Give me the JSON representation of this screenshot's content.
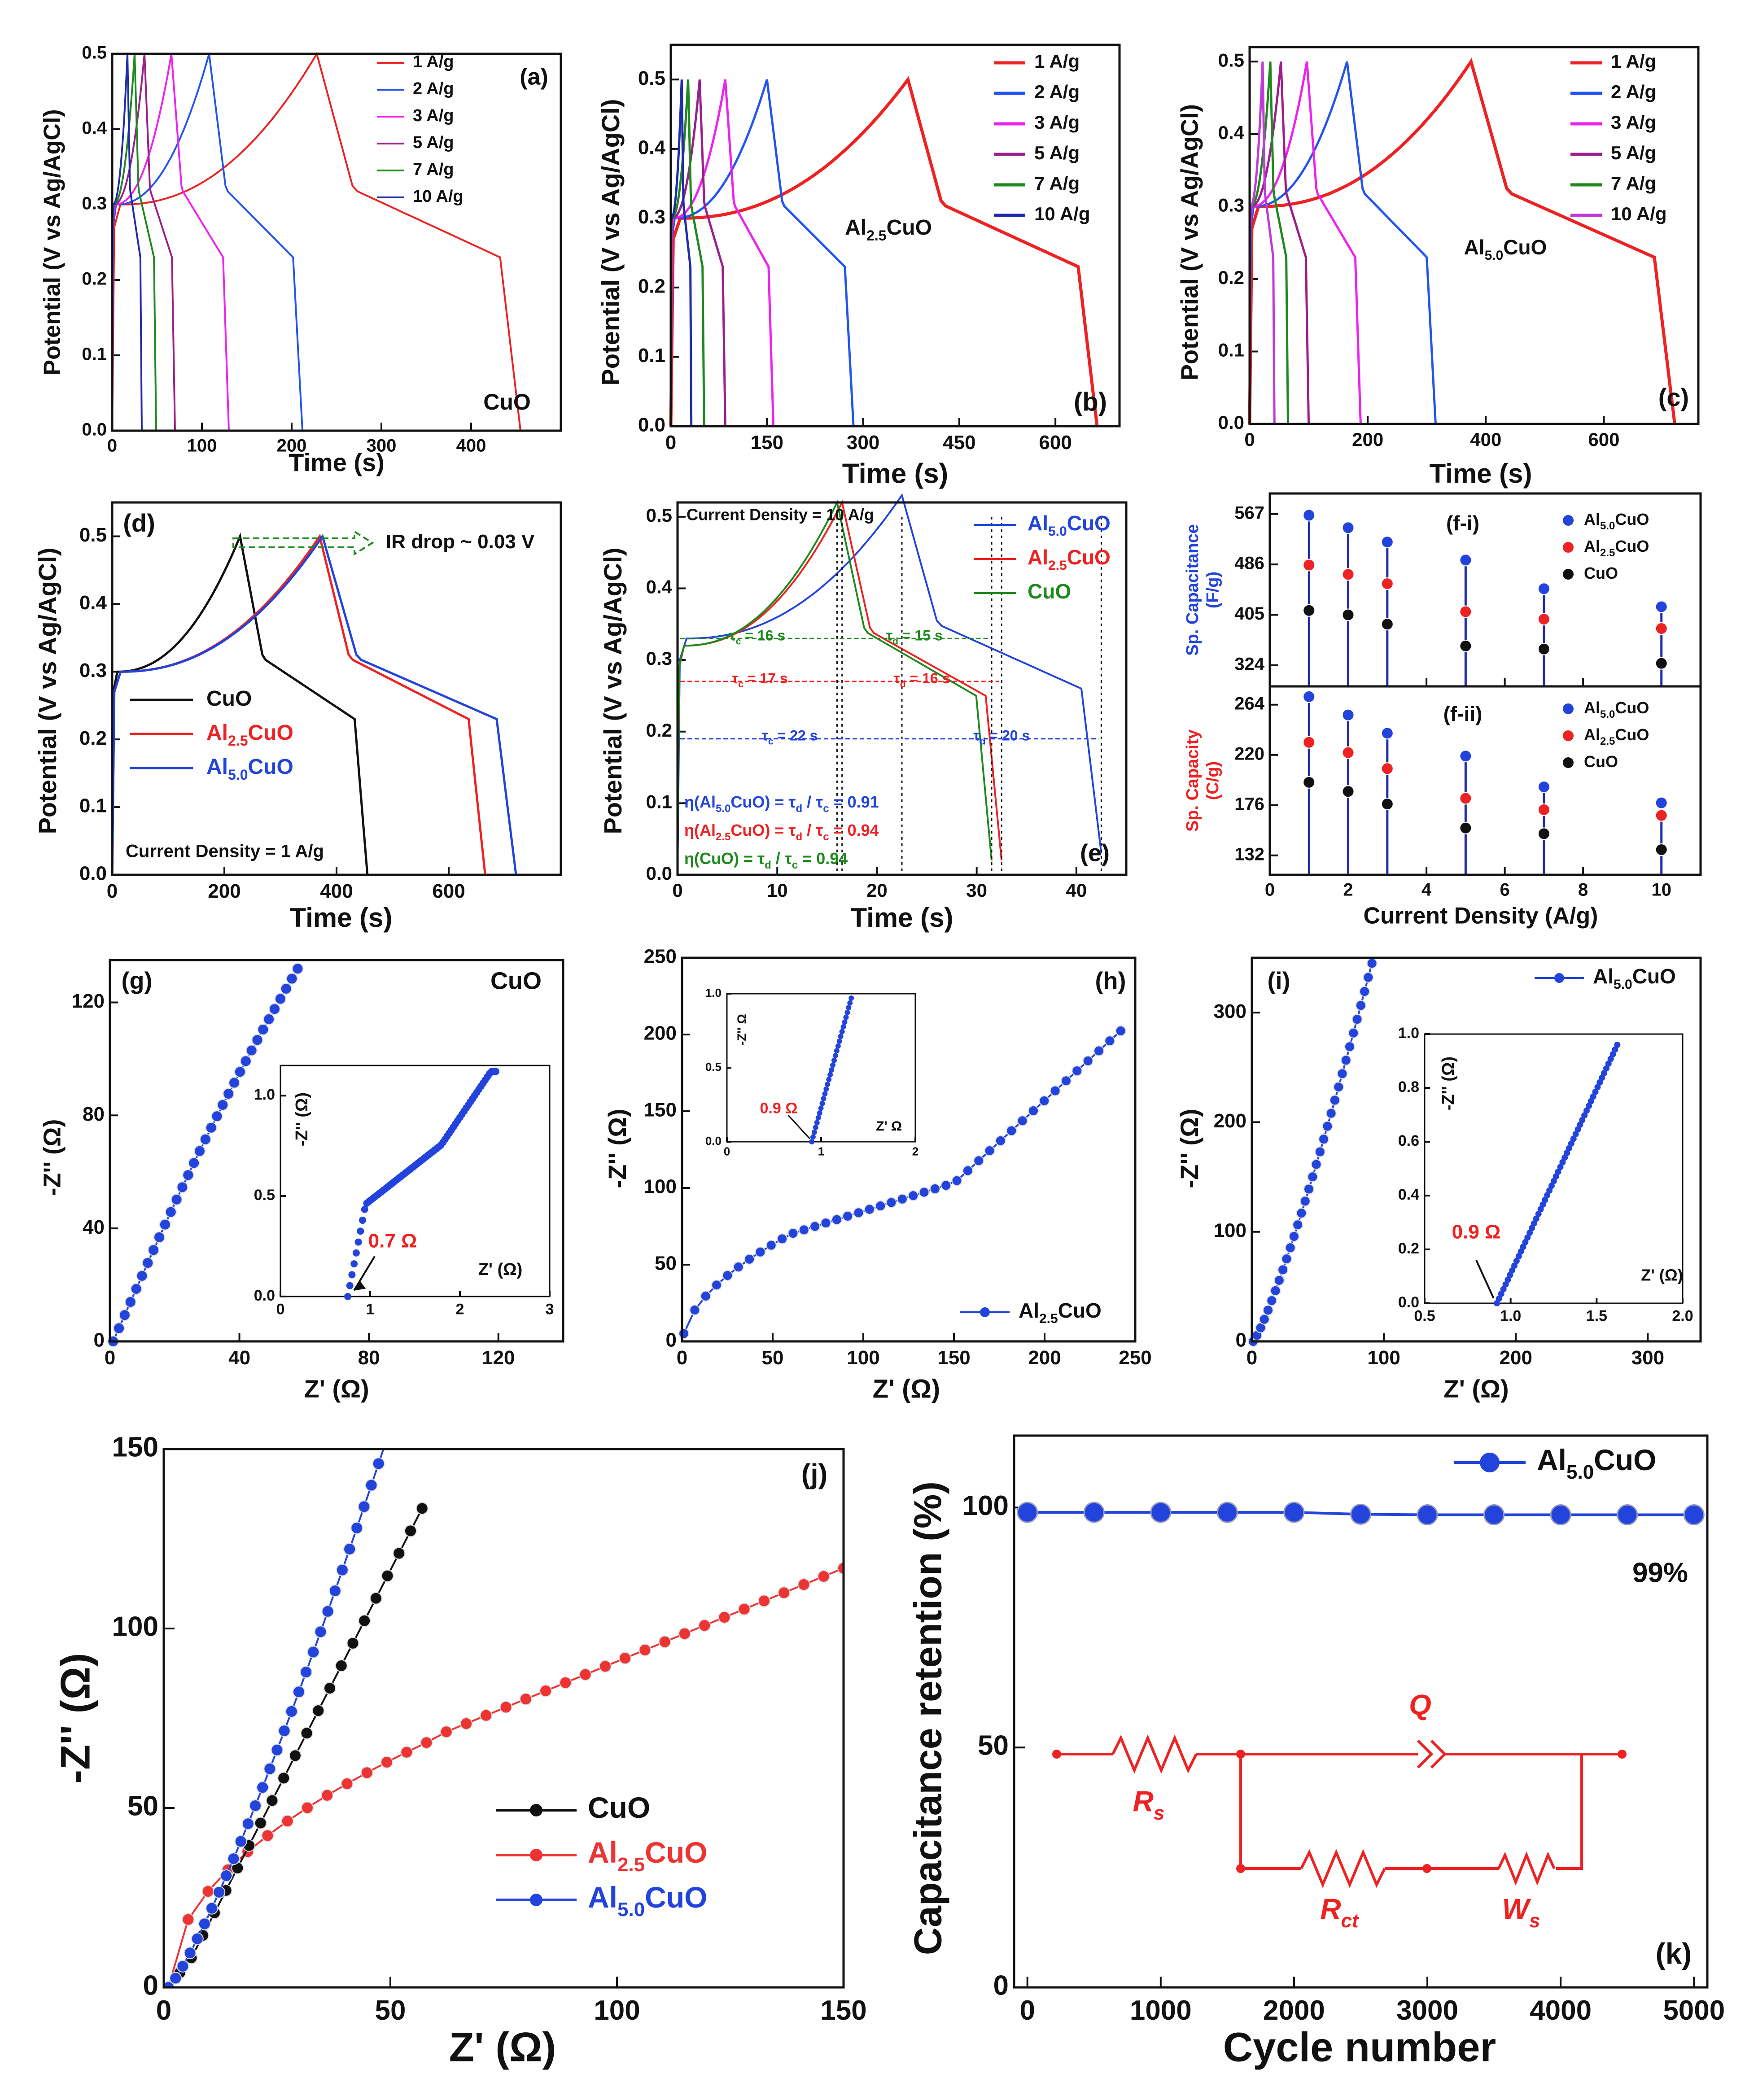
{
  "chart_data": [
    {
      "id": "a",
      "type": "line",
      "panel_label": "(a)",
      "annotation": "CuO",
      "xlabel": "Time (s)",
      "ylabel": "Potential (V vs Ag/AgCl)",
      "xlim": [
        0,
        500
      ],
      "ylim": [
        0,
        0.5
      ],
      "xticks": [
        0,
        100,
        200,
        300,
        400
      ],
      "yticks": [
        0,
        0.1,
        0.2,
        0.3,
        0.4,
        0.5
      ],
      "series": [
        {
          "name": "1 A/g",
          "color": "#ee2222",
          "charge_end": 228,
          "discharge_end": 455
        },
        {
          "name": "2 A/g",
          "color": "#2255ee",
          "charge_end": 108,
          "discharge_end": 212
        },
        {
          "name": "3 A/g",
          "color": "#ee22ee",
          "charge_end": 66,
          "discharge_end": 130
        },
        {
          "name": "5 A/g",
          "color": "#9b1f8a",
          "charge_end": 36,
          "discharge_end": 70
        },
        {
          "name": "7 A/g",
          "color": "#1e8a1e",
          "charge_end": 25,
          "discharge_end": 49
        },
        {
          "name": "10 A/g",
          "color": "#1f2ca8",
          "charge_end": 17,
          "discharge_end": 33
        }
      ]
    },
    {
      "id": "b",
      "type": "line",
      "panel_label": "(b)",
      "annotation": "Al2.5CuO",
      "xlabel": "Time (s)",
      "ylabel": "Potential (V vs Ag/AgCl)",
      "xlim": [
        0,
        700
      ],
      "ylim": [
        0,
        0.55
      ],
      "xticks": [
        0,
        150,
        300,
        450,
        600
      ],
      "yticks": [
        0,
        0.1,
        0.2,
        0.3,
        0.4,
        0.5
      ],
      "series": [
        {
          "name": "1 A/g",
          "color": "#ee2222",
          "charge_end": 370,
          "discharge_end": 665
        },
        {
          "name": "2 A/g",
          "color": "#2255ee",
          "charge_end": 150,
          "discharge_end": 285
        },
        {
          "name": "3 A/g",
          "color": "#ee22ee",
          "charge_end": 85,
          "discharge_end": 160
        },
        {
          "name": "5 A/g",
          "color": "#9b1f8a",
          "charge_end": 45,
          "discharge_end": 85
        },
        {
          "name": "7 A/g",
          "color": "#1e8a1e",
          "charge_end": 27,
          "discharge_end": 52
        },
        {
          "name": "10 A/g",
          "color": "#1f2ca8",
          "charge_end": 17,
          "discharge_end": 32
        }
      ]
    },
    {
      "id": "c",
      "type": "line",
      "panel_label": "(c)",
      "annotation": "Al5.0CuO",
      "xlabel": "Time (s)",
      "ylabel": "Potential (V vs Ag/AgCl)",
      "xlim": [
        0,
        760
      ],
      "ylim": [
        0,
        0.52
      ],
      "xticks": [
        0,
        200,
        400,
        600
      ],
      "yticks": [
        0,
        0.1,
        0.2,
        0.3,
        0.4,
        0.5
      ],
      "series": [
        {
          "name": "1 A/g",
          "color": "#ee2222",
          "charge_end": 375,
          "discharge_end": 720
        },
        {
          "name": "2 A/g",
          "color": "#2255ee",
          "charge_end": 165,
          "discharge_end": 315
        },
        {
          "name": "3 A/g",
          "color": "#ee22ee",
          "charge_end": 97,
          "discharge_end": 188
        },
        {
          "name": "5 A/g",
          "color": "#9b1f8a",
          "charge_end": 53,
          "discharge_end": 100
        },
        {
          "name": "7 A/g",
          "color": "#1e8a1e",
          "charge_end": 35,
          "discharge_end": 65
        },
        {
          "name": "10 A/g",
          "color": "#c03ad8",
          "charge_end": 22,
          "discharge_end": 42
        }
      ]
    },
    {
      "id": "d",
      "type": "line",
      "panel_label": "(d)",
      "annotation": "IR drop ~ 0.03 V",
      "note": "Current Density = 1 A/g",
      "xlabel": "Time (s)",
      "ylabel": "Potential (V vs Ag/AgCl)",
      "xlim": [
        0,
        800
      ],
      "ylim": [
        0,
        0.55
      ],
      "xticks": [
        0,
        200,
        400,
        600
      ],
      "yticks": [
        0,
        0.1,
        0.2,
        0.3,
        0.4,
        0.5
      ],
      "series": [
        {
          "name": "CuO",
          "color": "#111111",
          "charge_end": 228,
          "discharge_end": 455
        },
        {
          "name": "Al2.5CuO",
          "color": "#ee2222",
          "charge_end": 370,
          "discharge_end": 665
        },
        {
          "name": "Al5.0CuO",
          "color": "#2244dd",
          "charge_end": 375,
          "discharge_end": 720
        }
      ]
    },
    {
      "id": "e",
      "type": "line",
      "panel_label": "(e)",
      "note": "Current Density = 10 A/g",
      "xlabel": "Time (s)",
      "ylabel": "Potential (V vs Ag/AgCl)",
      "xlim": [
        0,
        45
      ],
      "ylim": [
        0,
        0.52
      ],
      "xticks": [
        0,
        10,
        20,
        30,
        40
      ],
      "yticks": [
        0,
        0.1,
        0.2,
        0.3,
        0.4,
        0.5
      ],
      "series": [
        {
          "name": "Al5.0CuO",
          "color": "#2244dd",
          "charge_end": 22.5,
          "discharge_end": 42.5
        },
        {
          "name": "Al2.5CuO",
          "color": "#ee2222",
          "charge_end": 16.5,
          "discharge_end": 32.5
        },
        {
          "name": "CuO",
          "color": "#1e8a1e",
          "charge_end": 16,
          "discharge_end": 31.5
        }
      ],
      "tau_labels": [
        "τc = 16 s",
        "τd = 15 s",
        "τc = 17 s",
        "τd = 16 s",
        "τc = 22 s",
        "τd = 20 s"
      ],
      "eff_labels": [
        "η(Al5.0CuO) = τd / τc = 0.91",
        "η(Al2.5CuO) = τd / τc = 0.94",
        "η(CuO) = τd / τc = 0.94"
      ]
    },
    {
      "id": "f-i",
      "type": "scatter",
      "panel_label": "(f-i)",
      "ylabel": "Sp. Capacitance (F/g)",
      "ylim": [
        290,
        600
      ],
      "yticks": [
        324,
        405,
        486,
        567
      ],
      "x": [
        1,
        2,
        3,
        5,
        7,
        10
      ],
      "series": [
        {
          "name": "Al5.0CuO",
          "color": "#2244dd",
          "values": [
            565,
            545,
            522,
            493,
            447,
            418
          ]
        },
        {
          "name": "Al2.5CuO",
          "color": "#ee2222",
          "values": [
            485,
            470,
            455,
            410,
            398,
            383
          ]
        },
        {
          "name": "CuO",
          "color": "#111111",
          "values": [
            412,
            405,
            390,
            355,
            350,
            327
          ]
        }
      ]
    },
    {
      "id": "f-ii",
      "type": "scatter",
      "panel_label": "(f-ii)",
      "xlabel": "Current Density (A/g)",
      "ylabel": "Sp. Capacity (C/g)",
      "xlim": [
        0,
        11
      ],
      "ylim": [
        115,
        280
      ],
      "xticks": [
        0,
        2,
        4,
        6,
        8,
        10
      ],
      "yticks": [
        132,
        176,
        220,
        264
      ],
      "x": [
        1,
        2,
        3,
        5,
        7,
        10
      ],
      "series": [
        {
          "name": "Al5.0CuO",
          "color": "#2244dd",
          "values": [
            271,
            255,
            239,
            219,
            192,
            178
          ]
        },
        {
          "name": "Al2.5CuO",
          "color": "#ee2222",
          "values": [
            231,
            222,
            208,
            182,
            172,
            167
          ]
        },
        {
          "name": "CuO",
          "color": "#111111",
          "values": [
            196,
            188,
            177,
            156,
            151,
            137
          ]
        }
      ]
    },
    {
      "id": "g",
      "type": "scatter",
      "panel_label": "(g)",
      "annotation": "CuO",
      "xlabel": "Z' (Ω)",
      "ylabel": "-Z'' (Ω)",
      "xlim": [
        0,
        140
      ],
      "ylim": [
        0,
        135
      ],
      "xticks": [
        0,
        40,
        80,
        120
      ],
      "yticks": [
        0,
        40,
        80,
        120
      ],
      "inset": {
        "xlabel": "Z' (Ω)",
        "ylabel": "-Z'' (Ω)",
        "xlim": [
          0,
          3
        ],
        "ylim": [
          0,
          1.15
        ],
        "xticks": [
          0,
          1,
          2,
          3
        ],
        "yticks": [
          0.0,
          0.5,
          1.0
        ],
        "annotation": "0.7 Ω"
      }
    },
    {
      "id": "h",
      "type": "scatter",
      "panel_label": "(h)",
      "legend": "Al2.5CuO",
      "xlabel": "Z' (Ω)",
      "ylabel": "-Z'' (Ω)",
      "xlim": [
        0,
        250
      ],
      "ylim": [
        0,
        250
      ],
      "xticks": [
        0,
        50,
        100,
        150,
        200,
        250
      ],
      "yticks": [
        0,
        50,
        100,
        150,
        200,
        250
      ],
      "inset": {
        "xlabel": "Z' Ω",
        "ylabel": "-Z'' Ω",
        "xlim": [
          0,
          2
        ],
        "ylim": [
          0,
          1.0
        ],
        "xticks": [
          0,
          1,
          2
        ],
        "yticks": [
          0.0,
          0.5,
          1.0
        ],
        "annotation": "0.9 Ω"
      }
    },
    {
      "id": "i",
      "type": "scatter",
      "panel_label": "(i)",
      "legend": "Al5.0CuO",
      "xlabel": "Z' (Ω)",
      "ylabel": "-Z'' (Ω)",
      "xlim": [
        0,
        340
      ],
      "ylim": [
        0,
        350
      ],
      "xticks": [
        0,
        100,
        200,
        300
      ],
      "yticks": [
        0,
        100,
        200,
        300
      ],
      "inset": {
        "xlabel": "Z' (Ω)",
        "ylabel": "-Z'' (Ω)",
        "xlim": [
          0.5,
          2.0
        ],
        "ylim": [
          0,
          1.0
        ],
        "xticks": [
          0.5,
          1.0,
          1.5,
          2.0
        ],
        "yticks": [
          0.0,
          0.2,
          0.4,
          0.6,
          0.8,
          1.0
        ],
        "annotation": "0.9 Ω"
      }
    },
    {
      "id": "j",
      "type": "scatter",
      "panel_label": "(j)",
      "xlabel": "Z' (Ω)",
      "ylabel": "-Z'' (Ω)",
      "xlim": [
        0,
        150
      ],
      "ylim": [
        0,
        150
      ],
      "xticks": [
        0,
        50,
        100,
        150
      ],
      "yticks": [
        0,
        50,
        100,
        150
      ],
      "series": [
        {
          "name": "CuO",
          "color": "#111111"
        },
        {
          "name": "Al2.5CuO",
          "color": "#ee3333"
        },
        {
          "name": "Al5.0CuO",
          "color": "#2244dd"
        }
      ]
    },
    {
      "id": "k",
      "type": "line",
      "panel_label": "(k)",
      "xlabel": "Cycle number",
      "ylabel": "Capacitance retention (%)",
      "xlim": [
        -100,
        5100
      ],
      "ylim": [
        0,
        115
      ],
      "xticks": [
        0,
        1000,
        2000,
        3000,
        4000,
        5000
      ],
      "yticks": [
        0,
        50,
        100
      ],
      "annotation": "99%",
      "circuit_labels": [
        "Q",
        "Rs",
        "Rct",
        "Ws"
      ],
      "series": [
        {
          "name": "Al5.0CuO",
          "color": "#2244dd",
          "x": [
            0,
            500,
            1000,
            1500,
            2000,
            2500,
            3000,
            3500,
            4000,
            4500,
            5000
          ],
          "values": [
            99,
            99,
            99,
            99,
            99,
            98.6,
            98.5,
            98.5,
            98.5,
            98.5,
            98.5
          ]
        }
      ]
    }
  ]
}
